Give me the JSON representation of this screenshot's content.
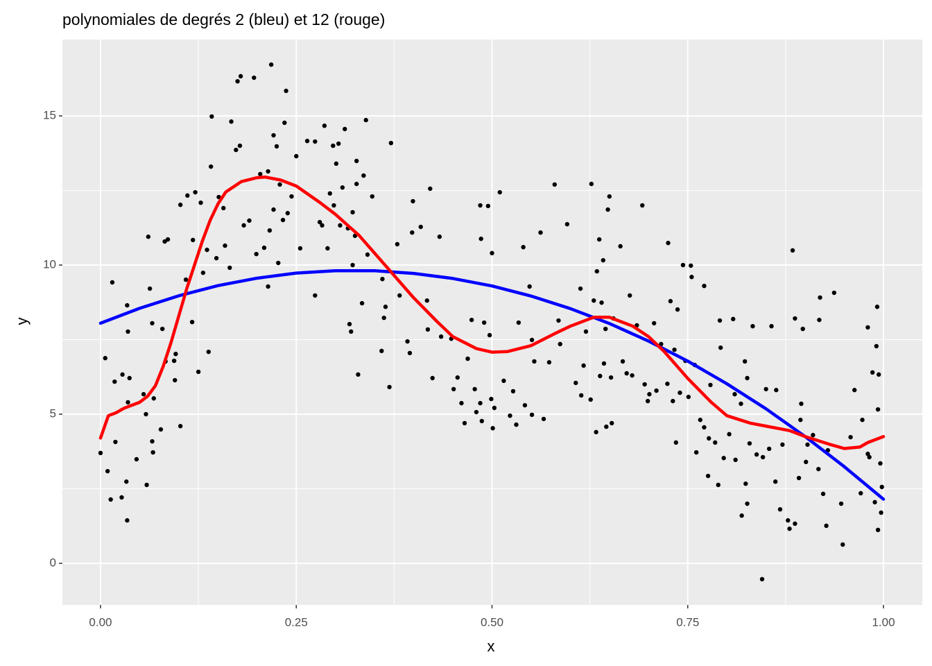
{
  "chart_data": {
    "type": "scatter",
    "title": "polynomiales de degrés 2 (bleu) et 12 (rouge)",
    "x_label": "x",
    "y_label": "y",
    "xlim": [
      -0.0487,
      1.0496
    ],
    "ylim": [
      -1.395,
      17.56
    ],
    "xticks": [
      {
        "value": 0,
        "label": "0.00"
      },
      0.25,
      {
        "value": 0.5,
        "label": "0.50"
      },
      0.75,
      {
        "value": 1,
        "label": "1.00"
      }
    ],
    "yticks": [
      0,
      5,
      10,
      15
    ],
    "grid": true,
    "points": {
      "color": "#000000",
      "x": [
        0,
        0.006,
        0.009,
        0.013,
        0.015,
        0.018,
        0.019,
        0.027,
        0.028,
        0.033,
        0.034,
        0.034,
        0.035,
        0.035,
        0.037,
        0.046,
        0.055,
        0.058,
        0.059,
        0.061,
        0.063,
        0.066,
        0.066,
        0.067,
        0.068,
        0.077,
        0.079,
        0.082,
        0.083,
        0.086,
        0.094,
        0.095,
        0.096,
        0.102,
        0.102,
        0.109,
        0.111,
        0.117,
        0.118,
        0.121,
        0.125,
        0.128,
        0.131,
        0.136,
        0.138,
        0.141,
        0.142,
        0.148,
        0.151,
        0.157,
        0.159,
        0.165,
        0.167,
        0.173,
        0.175,
        0.178,
        0.179,
        0.183,
        0.19,
        0.196,
        0.199,
        0.204,
        0.209,
        0.214,
        0.214,
        0.216,
        0.218,
        0.221,
        0.221,
        0.225,
        0.227,
        0.229,
        0.233,
        0.235,
        0.237,
        0.239,
        0.244,
        0.25,
        0.255,
        0.264,
        0.274,
        0.274,
        0.28,
        0.283,
        0.286,
        0.29,
        0.293,
        0.297,
        0.298,
        0.301,
        0.304,
        0.306,
        0.309,
        0.312,
        0.316,
        0.318,
        0.32,
        0.322,
        0.322,
        0.325,
        0.327,
        0.327,
        0.329,
        0.334,
        0.336,
        0.339,
        0.341,
        0.347,
        0.359,
        0.36,
        0.362,
        0.364,
        0.369,
        0.371,
        0.379,
        0.382,
        0.392,
        0.395,
        0.398,
        0.399,
        0.409,
        0.417,
        0.418,
        0.421,
        0.424,
        0.433,
        0.435,
        0.448,
        0.451,
        0.456,
        0.461,
        0.465,
        0.469,
        0.474,
        0.478,
        0.48,
        0.485,
        0.485,
        0.486,
        0.487,
        0.49,
        0.495,
        0.497,
        0.499,
        0.5,
        0.501,
        0.503,
        0.51,
        0.515,
        0.523,
        0.527,
        0.531,
        0.534,
        0.54,
        0.542,
        0.548,
        0.551,
        0.551,
        0.554,
        0.562,
        0.566,
        0.573,
        0.58,
        0.585,
        0.587,
        0.596,
        0.607,
        0.613,
        0.614,
        0.617,
        0.62,
        0.626,
        0.627,
        0.63,
        0.633,
        0.634,
        0.637,
        0.638,
        0.64,
        0.642,
        0.643,
        0.645,
        0.646,
        0.648,
        0.65,
        0.652,
        0.653,
        0.655,
        0.664,
        0.667,
        0.672,
        0.676,
        0.679,
        0.685,
        0.692,
        0.695,
        0.699,
        0.701,
        0.707,
        0.71,
        0.716,
        0.724,
        0.725,
        0.728,
        0.731,
        0.733,
        0.735,
        0.737,
        0.74,
        0.744,
        0.747,
        0.751,
        0.754,
        0.755,
        0.759,
        0.761,
        0.766,
        0.771,
        0.771,
        0.776,
        0.777,
        0.779,
        0.785,
        0.789,
        0.791,
        0.792,
        0.796,
        0.803,
        0.808,
        0.81,
        0.811,
        0.818,
        0.819,
        0.823,
        0.824,
        0.826,
        0.826,
        0.829,
        0.833,
        0.838,
        0.845,
        0.846,
        0.85,
        0.854,
        0.857,
        0.862,
        0.863,
        0.868,
        0.871,
        0.878,
        0.88,
        0.884,
        0.887,
        0.887,
        0.892,
        0.894,
        0.895,
        0.897,
        0.901,
        0.903,
        0.91,
        0.917,
        0.918,
        0.919,
        0.923,
        0.929,
        0.937,
        0.927,
        0.946,
        0.948,
        0.958,
        0.963,
        0.971,
        0.973,
        0.98,
        0.98,
        0.982,
        0.986,
        0.989,
        0.991,
        0.992,
        0.993,
        0.993,
        0.994,
        0.996,
        0.997,
        0.998
      ],
      "y": [
        3.7,
        6.88,
        3.09,
        2.14,
        9.42,
        6.09,
        4.07,
        2.21,
        6.33,
        2.74,
        1.44,
        8.65,
        7.77,
        5.4,
        6.21,
        3.49,
        5.67,
        5.0,
        2.63,
        10.95,
        9.21,
        4.09,
        8.05,
        3.72,
        5.53,
        4.49,
        7.86,
        10.79,
        6.77,
        10.86,
        6.79,
        6.14,
        7.02,
        4.6,
        12.02,
        9.51,
        12.33,
        8.09,
        10.84,
        12.44,
        6.42,
        12.09,
        9.74,
        10.51,
        7.09,
        13.3,
        14.98,
        10.23,
        12.28,
        11.91,
        10.65,
        9.91,
        14.81,
        13.86,
        16.16,
        14.0,
        16.33,
        11.33,
        11.49,
        16.28,
        10.37,
        13.05,
        10.58,
        13.14,
        9.28,
        11.16,
        16.72,
        11.86,
        14.35,
        13.98,
        10.07,
        12.7,
        11.51,
        14.77,
        15.84,
        11.74,
        12.3,
        13.65,
        10.56,
        14.16,
        8.98,
        14.14,
        11.44,
        11.33,
        14.67,
        10.56,
        12.4,
        14.0,
        12.0,
        13.4,
        14.07,
        11.33,
        12.6,
        14.56,
        11.23,
        8.02,
        7.77,
        10.0,
        11.77,
        10.98,
        13.49,
        12.72,
        6.33,
        8.72,
        13.0,
        14.86,
        10.35,
        12.3,
        7.12,
        9.53,
        8.23,
        8.6,
        5.91,
        14.09,
        10.7,
        8.98,
        7.44,
        7.05,
        11.09,
        12.14,
        11.28,
        8.81,
        7.84,
        12.56,
        6.21,
        10.95,
        7.6,
        7.53,
        5.84,
        6.23,
        5.37,
        4.7,
        6.86,
        8.16,
        5.84,
        5.07,
        12.0,
        5.37,
        10.88,
        4.77,
        8.07,
        11.98,
        7.65,
        5.51,
        10.4,
        4.53,
        5.21,
        12.44,
        6.12,
        4.95,
        5.77,
        4.65,
        8.07,
        10.6,
        5.3,
        9.28,
        4.98,
        7.49,
        6.77,
        11.09,
        4.84,
        6.74,
        12.7,
        8.14,
        7.35,
        11.37,
        6.05,
        9.21,
        5.63,
        6.63,
        7.77,
        5.49,
        12.72,
        8.81,
        4.4,
        9.79,
        10.86,
        6.28,
        8.74,
        10.16,
        6.7,
        7.86,
        4.58,
        11.86,
        12.3,
        6.23,
        4.7,
        8.21,
        10.63,
        6.77,
        6.37,
        8.98,
        6.3,
        7.98,
        12.0,
        6.0,
        5.44,
        5.67,
        8.05,
        5.79,
        7.35,
        6.02,
        10.74,
        8.79,
        5.44,
        7.16,
        4.05,
        8.51,
        5.72,
        10.0,
        6.79,
        5.58,
        9.98,
        9.6,
        6.65,
        3.72,
        4.81,
        9.3,
        4.56,
        2.93,
        4.19,
        5.98,
        4.05,
        2.63,
        8.14,
        7.23,
        3.53,
        4.33,
        8.19,
        5.67,
        3.47,
        5.35,
        1.6,
        6.77,
        2.67,
        2.0,
        6.21,
        4.02,
        7.95,
        3.65,
        -0.53,
        3.56,
        5.84,
        3.84,
        7.95,
        2.74,
        5.81,
        1.81,
        3.98,
        1.44,
        1.16,
        10.49,
        1.33,
        8.21,
        2.86,
        4.81,
        5.35,
        7.86,
        3.4,
        3.98,
        4.3,
        3.16,
        8.16,
        8.91,
        2.33,
        3.79,
        9.07,
        1.26,
        2.0,
        0.63,
        4.23,
        5.81,
        2.35,
        4.81,
        3.67,
        7.91,
        3.56,
        6.4,
        2.05,
        7.28,
        8.6,
        5.16,
        1.12,
        6.33,
        3.35,
        1.7,
        2.56
      ]
    },
    "lines": [
      {
        "color": "#0000ff",
        "x": [
          0,
          0.05,
          0.1,
          0.15,
          0.2,
          0.25,
          0.3,
          0.35,
          0.4,
          0.45,
          0.5,
          0.55,
          0.6,
          0.65,
          0.7,
          0.75,
          0.8,
          0.85,
          0.9,
          0.95,
          1
        ],
        "y": [
          8.05,
          8.55,
          8.97,
          9.31,
          9.56,
          9.73,
          9.81,
          9.81,
          9.72,
          9.55,
          9.3,
          8.96,
          8.54,
          8.04,
          7.45,
          6.78,
          6.02,
          5.18,
          4.25,
          3.24,
          2.15
        ]
      },
      {
        "color": "#ff0000",
        "x": [
          0,
          0.01,
          0.02,
          0.03,
          0.04,
          0.05,
          0.06,
          0.07,
          0.08,
          0.09,
          0.1,
          0.11,
          0.12,
          0.13,
          0.14,
          0.15,
          0.16,
          0.18,
          0.2,
          0.21,
          0.23,
          0.25,
          0.28,
          0.3,
          0.33,
          0.35,
          0.37,
          0.4,
          0.43,
          0.45,
          0.48,
          0.5,
          0.52,
          0.55,
          0.58,
          0.6,
          0.63,
          0.65,
          0.68,
          0.7,
          0.72,
          0.75,
          0.78,
          0.8,
          0.83,
          0.85,
          0.88,
          0.9,
          0.93,
          0.95,
          0.97,
          0.98,
          1
        ],
        "y": [
          4.2,
          4.95,
          5.05,
          5.2,
          5.3,
          5.4,
          5.6,
          5.95,
          6.6,
          7.4,
          8.3,
          9.2,
          10.0,
          10.8,
          11.5,
          12.05,
          12.45,
          12.8,
          12.93,
          12.95,
          12.85,
          12.65,
          12.1,
          11.7,
          11.0,
          10.4,
          9.8,
          8.9,
          8.1,
          7.6,
          7.2,
          7.08,
          7.1,
          7.3,
          7.7,
          7.95,
          8.25,
          8.25,
          7.95,
          7.6,
          7.1,
          6.2,
          5.4,
          4.95,
          4.7,
          4.6,
          4.45,
          4.25,
          4.0,
          3.85,
          3.9,
          4.05,
          4.25
        ]
      }
    ]
  }
}
